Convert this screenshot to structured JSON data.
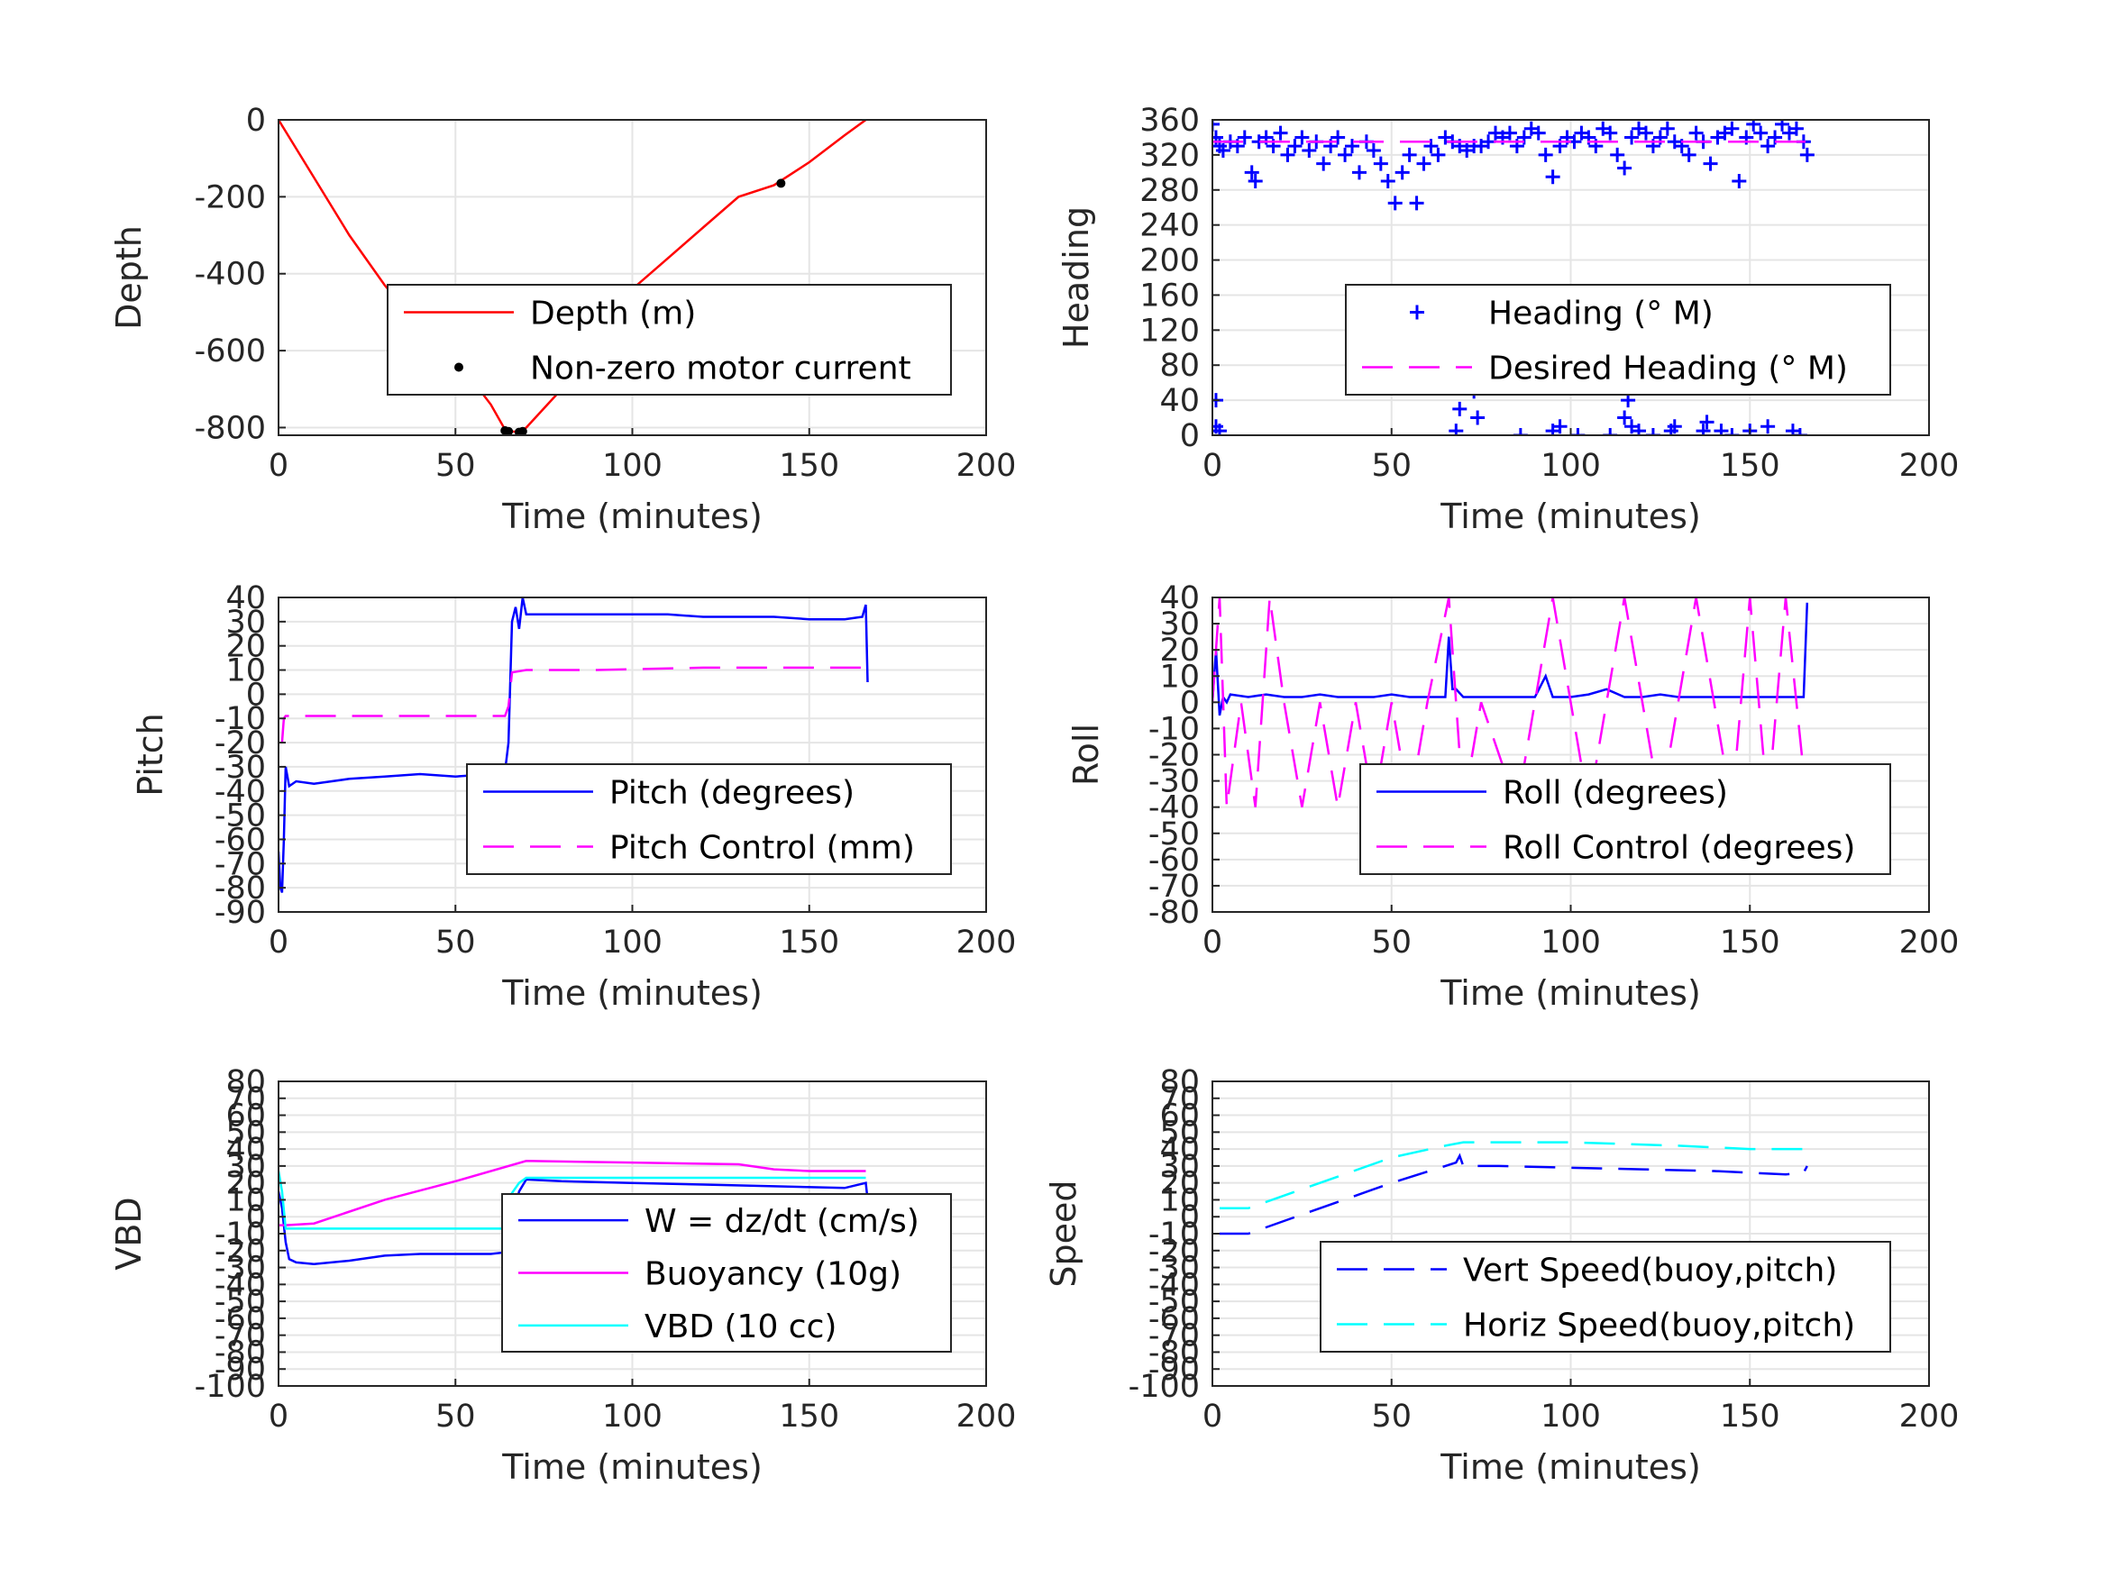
{
  "figure_colors": {
    "red": "#ff0000",
    "blue": "#0000ff",
    "magenta": "#ff00ff",
    "cyan": "#00ffff",
    "black": "#000000",
    "grid": "#e5e5e5",
    "axis": "#262626"
  },
  "chart_data": [
    {
      "type": "line",
      "panel": "depth",
      "xlabel": "Time (minutes)",
      "ylabel": "Depth",
      "xlim": [
        0,
        200
      ],
      "ylim": [
        -820,
        0
      ],
      "xticks": [
        0,
        50,
        100,
        150,
        200
      ],
      "yticks": [
        0,
        -200,
        -400,
        -600,
        -800
      ],
      "grid": true,
      "legend_position": "center-right",
      "series": [
        {
          "name": "Depth (m)",
          "color": "#ff0000",
          "style": "solid",
          "x": [
            0,
            10,
            20,
            30,
            40,
            50,
            55,
            60,
            64,
            66,
            68,
            70,
            80,
            90,
            100,
            110,
            120,
            130,
            140,
            150,
            160,
            166
          ],
          "y": [
            0,
            -150,
            -300,
            -430,
            -540,
            -620,
            -680,
            -740,
            -805,
            -810,
            -812,
            -800,
            -700,
            -560,
            -440,
            -360,
            -280,
            -200,
            -170,
            -110,
            -40,
            0
          ]
        },
        {
          "name": "Non-zero motor current",
          "color": "#000000",
          "style": "markers",
          "x": [
            51,
            64,
            65,
            68,
            69,
            142
          ],
          "y": [
            -640,
            -808,
            -810,
            -812,
            -810,
            -165
          ]
        }
      ]
    },
    {
      "type": "scatter",
      "panel": "heading",
      "xlabel": "Time (minutes)",
      "ylabel": "Heading",
      "xlim": [
        0,
        200
      ],
      "ylim": [
        0,
        360
      ],
      "xticks": [
        0,
        50,
        100,
        150,
        200
      ],
      "yticks": [
        0,
        40,
        80,
        120,
        160,
        200,
        240,
        280,
        320,
        360
      ],
      "grid": true,
      "legend_position": "center-right",
      "series": [
        {
          "name": "Heading (° M)",
          "color": "#0000ff",
          "style": "plus",
          "x": [
            0,
            1,
            2,
            3,
            5,
            7,
            9,
            11,
            12,
            13,
            15,
            17,
            19,
            21,
            23,
            25,
            27,
            29,
            31,
            33,
            35,
            37,
            39,
            41,
            43,
            45,
            47,
            49,
            51,
            53,
            55,
            57,
            59,
            61,
            63,
            65,
            67,
            69,
            71,
            73,
            75,
            77,
            79,
            81,
            83,
            85,
            87,
            89,
            91,
            93,
            95,
            97,
            99,
            101,
            103,
            105,
            107,
            109,
            111,
            113,
            115,
            117,
            119,
            121,
            123,
            125,
            127,
            129,
            131,
            133,
            135,
            137,
            139,
            141,
            143,
            145,
            147,
            149,
            151,
            153,
            155,
            157,
            159,
            161,
            163,
            165,
            166,
            1,
            1,
            2,
            69,
            70,
            71,
            72,
            73,
            74,
            68,
            86,
            95,
            97,
            102,
            111,
            115,
            116,
            117,
            119,
            123,
            128,
            129,
            137,
            138,
            142,
            145,
            150,
            155,
            162,
            164
          ],
          "y": [
            355,
            340,
            330,
            325,
            335,
            330,
            340,
            300,
            290,
            335,
            340,
            330,
            345,
            320,
            330,
            340,
            325,
            335,
            310,
            330,
            340,
            320,
            330,
            300,
            335,
            325,
            310,
            290,
            265,
            300,
            320,
            265,
            310,
            330,
            320,
            340,
            335,
            330,
            325,
            330,
            330,
            335,
            345,
            340,
            345,
            330,
            340,
            350,
            345,
            320,
            295,
            330,
            340,
            335,
            345,
            340,
            330,
            350,
            345,
            320,
            305,
            340,
            350,
            345,
            330,
            340,
            350,
            335,
            330,
            320,
            345,
            335,
            310,
            340,
            345,
            350,
            290,
            340,
            355,
            345,
            330,
            340,
            355,
            345,
            350,
            335,
            320,
            40,
            10,
            5,
            30,
            60,
            80,
            70,
            50,
            20,
            5,
            0,
            5,
            10,
            0,
            0,
            20,
            40,
            10,
            5,
            0,
            5,
            10,
            5,
            15,
            5,
            0,
            5,
            10,
            5,
            0
          ]
        },
        {
          "name": "Desired Heading (° M)",
          "color": "#ff00ff",
          "style": "dashed",
          "x": [
            0,
            166
          ],
          "y": [
            335,
            335
          ]
        }
      ]
    },
    {
      "type": "line",
      "panel": "pitch",
      "xlabel": "Time (minutes)",
      "ylabel": "Pitch",
      "xlim": [
        0,
        200
      ],
      "ylim": [
        -90,
        40
      ],
      "xticks": [
        0,
        50,
        100,
        150,
        200
      ],
      "yticks": [
        40,
        30,
        20,
        10,
        0,
        -10,
        -20,
        -30,
        -40,
        -50,
        -60,
        -70,
        -80,
        -90
      ],
      "grid": true,
      "legend_position": "center-right",
      "series": [
        {
          "name": "Pitch (degrees)",
          "color": "#0000ff",
          "style": "solid",
          "x": [
            0,
            0.5,
            1,
            1.5,
            2,
            3,
            5,
            10,
            20,
            30,
            40,
            50,
            60,
            64,
            65,
            66,
            67,
            68,
            69,
            70,
            80,
            90,
            100,
            110,
            120,
            130,
            140,
            150,
            160,
            165,
            166,
            166.5
          ],
          "y": [
            -65,
            -80,
            -82,
            -60,
            -30,
            -38,
            -36,
            -37,
            -35,
            -34,
            -33,
            -34,
            -33,
            -32,
            -20,
            30,
            36,
            27,
            40,
            33,
            33,
            33,
            33,
            33,
            32,
            32,
            32,
            31,
            31,
            32,
            37,
            5
          ]
        },
        {
          "name": "Pitch Control (mm)",
          "color": "#ff00ff",
          "style": "dashed",
          "x": [
            1,
            1.5,
            2,
            10,
            20,
            40,
            60,
            64,
            65,
            66,
            70,
            90,
            120,
            150,
            166
          ],
          "y": [
            -20,
            -10,
            -9,
            -9,
            -9,
            -9,
            -9,
            -9,
            -5,
            9,
            10,
            10,
            11,
            11,
            11
          ]
        }
      ]
    },
    {
      "type": "line",
      "panel": "roll",
      "xlabel": "Time (minutes)",
      "ylabel": "Roll",
      "xlim": [
        0,
        200
      ],
      "ylim": [
        -80,
        40
      ],
      "xticks": [
        0,
        50,
        100,
        150,
        200
      ],
      "yticks": [
        40,
        30,
        20,
        10,
        0,
        -10,
        -20,
        -30,
        -40,
        -50,
        -60,
        -70,
        -80
      ],
      "grid": true,
      "legend_position": "center-right",
      "series": [
        {
          "name": "Roll (degrees)",
          "color": "#0000ff",
          "style": "solid",
          "x": [
            0,
            1,
            2,
            3,
            4,
            5,
            10,
            15,
            20,
            25,
            30,
            35,
            40,
            45,
            50,
            55,
            60,
            65,
            66,
            67,
            68,
            70,
            75,
            80,
            85,
            90,
            93,
            95,
            100,
            105,
            110,
            115,
            120,
            125,
            130,
            135,
            140,
            145,
            150,
            155,
            160,
            165,
            166
          ],
          "y": [
            0,
            20,
            -5,
            2,
            0,
            3,
            2,
            3,
            2,
            2,
            3,
            2,
            2,
            2,
            3,
            2,
            2,
            2,
            25,
            5,
            5,
            2,
            2,
            2,
            2,
            2,
            10,
            2,
            2,
            3,
            5,
            2,
            2,
            3,
            2,
            2,
            2,
            2,
            2,
            2,
            2,
            2,
            38
          ]
        },
        {
          "name": "Roll Control (degrees)",
          "color": "#ff00ff",
          "style": "dashed",
          "x": [
            0,
            2,
            4,
            8,
            12,
            16,
            20,
            25,
            30,
            35,
            40,
            45,
            50,
            55,
            60,
            66,
            70,
            75,
            85,
            95,
            105,
            115,
            125,
            135,
            145,
            150,
            155,
            160,
            166
          ],
          "y": [
            0,
            40,
            -40,
            0,
            -40,
            40,
            0,
            -40,
            0,
            -40,
            0,
            -40,
            0,
            -40,
            0,
            40,
            -40,
            0,
            -40,
            40,
            -40,
            40,
            -40,
            40,
            -40,
            40,
            -40,
            40,
            -40
          ]
        }
      ]
    },
    {
      "type": "line",
      "panel": "vbd",
      "xlabel": "Time (minutes)",
      "ylabel": "VBD",
      "xlim": [
        0,
        200
      ],
      "ylim": [
        -100,
        80
      ],
      "xticks": [
        0,
        50,
        100,
        150,
        200
      ],
      "yticks": [
        80,
        70,
        60,
        50,
        40,
        30,
        20,
        10,
        0,
        -10,
        -20,
        -30,
        -40,
        -50,
        -60,
        -70,
        -80,
        -90,
        -100
      ],
      "grid": true,
      "legend_position": "center-right",
      "series": [
        {
          "name": "W = dz/dt (cm/s)",
          "color": "#0000ff",
          "style": "solid",
          "x": [
            0,
            1,
            2,
            3,
            5,
            10,
            20,
            30,
            40,
            50,
            60,
            64,
            65,
            66,
            68,
            70,
            80,
            100,
            120,
            140,
            160,
            166,
            166.5
          ],
          "y": [
            15,
            5,
            -15,
            -25,
            -27,
            -28,
            -26,
            -23,
            -22,
            -22,
            -22,
            -21,
            -14,
            -2,
            15,
            22,
            21,
            20,
            19,
            18,
            17,
            20,
            10
          ]
        },
        {
          "name": "Buoyancy (10g)",
          "color": "#ff00ff",
          "style": "solid",
          "x": [
            0,
            2,
            10,
            30,
            50,
            70,
            100,
            130,
            140,
            150,
            166
          ],
          "y": [
            -5,
            -5,
            -4,
            10,
            21,
            33,
            32,
            31,
            28,
            27,
            27
          ]
        },
        {
          "name": "VBD (10 cc)",
          "color": "#00ffff",
          "style": "solid",
          "x": [
            0,
            1,
            2,
            10,
            30,
            50,
            60,
            64,
            65,
            66,
            68,
            70,
            100,
            130,
            166
          ],
          "y": [
            27,
            15,
            -7,
            -7,
            -7,
            -7,
            -7,
            -7,
            10,
            14,
            20,
            23,
            23,
            23,
            23
          ]
        }
      ]
    },
    {
      "type": "line",
      "panel": "speed",
      "xlabel": "Time (minutes)",
      "ylabel": "Speed",
      "xlim": [
        0,
        200
      ],
      "ylim": [
        -100,
        80
      ],
      "xticks": [
        0,
        50,
        100,
        150,
        200
      ],
      "yticks": [
        80,
        70,
        60,
        50,
        40,
        30,
        20,
        10,
        0,
        -10,
        -20,
        -30,
        -40,
        -50,
        -60,
        -70,
        -80,
        -90,
        -100
      ],
      "grid": true,
      "legend_position": "center-right",
      "series": [
        {
          "name": "Vert Speed(buoy,pitch)",
          "color": "#0000ff",
          "style": "dashed",
          "x": [
            2,
            10,
            30,
            50,
            65,
            68,
            69,
            70,
            80,
            100,
            120,
            140,
            160,
            165,
            166
          ],
          "y": [
            -10,
            -10,
            5,
            20,
            30,
            32,
            36,
            30,
            30,
            29,
            28,
            27,
            25,
            26,
            30
          ]
        },
        {
          "name": "Horiz Speed(buoy,pitch)",
          "color": "#00ffff",
          "style": "dashed",
          "x": [
            2,
            10,
            30,
            50,
            65,
            70,
            100,
            130,
            150,
            166
          ],
          "y": [
            5,
            5,
            20,
            35,
            42,
            44,
            44,
            42,
            40,
            40
          ]
        }
      ]
    }
  ]
}
